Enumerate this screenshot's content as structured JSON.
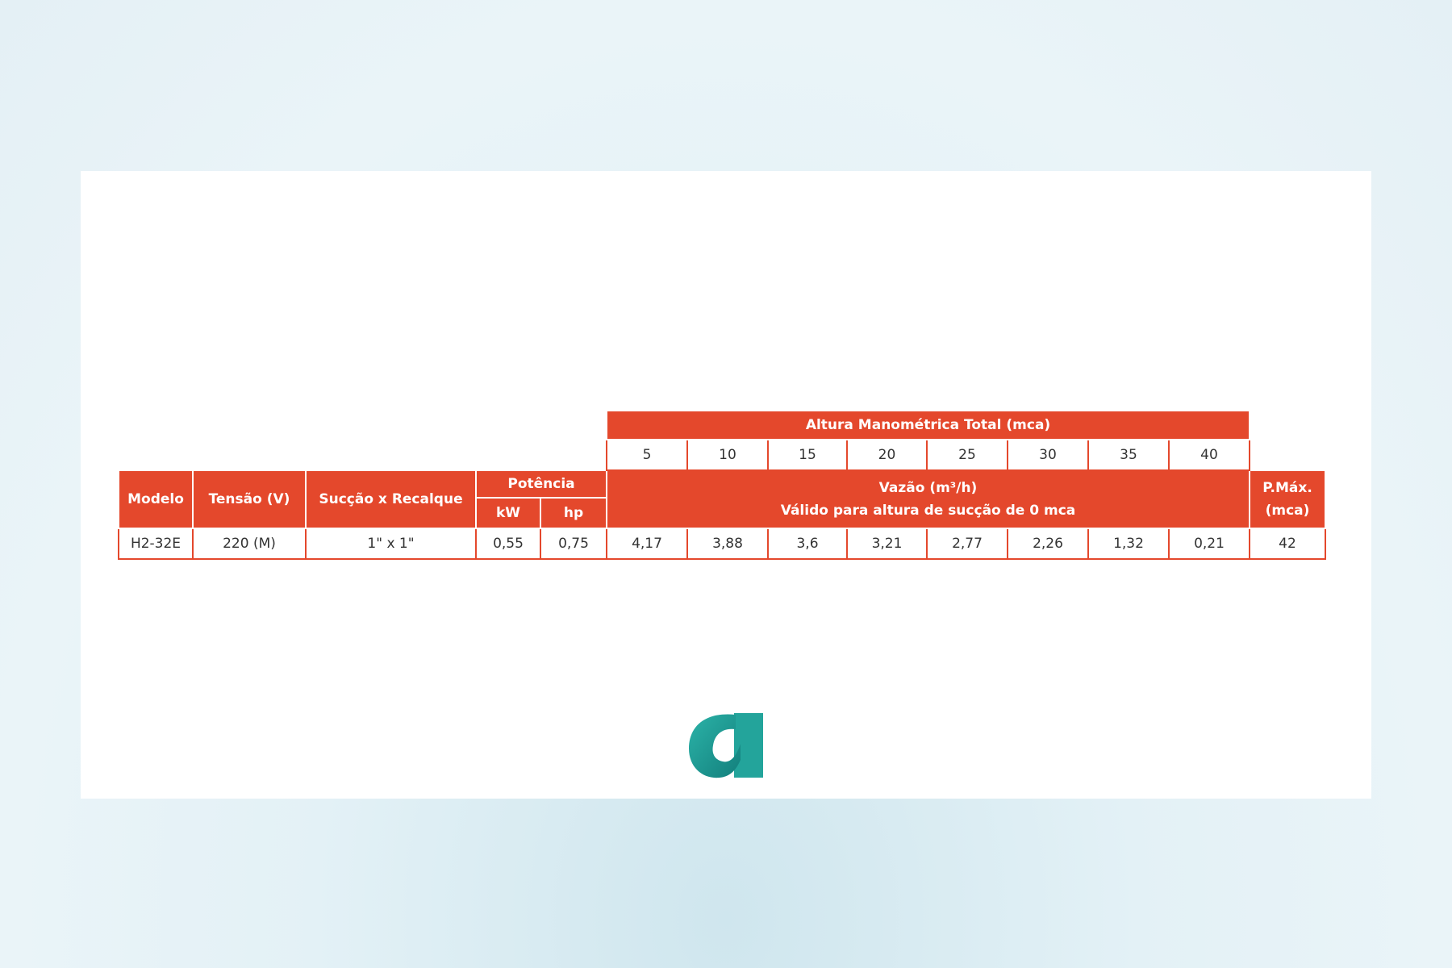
{
  "table": {
    "altura_header": "Altura Manométrica Total (mca)",
    "alturas": [
      "5",
      "10",
      "15",
      "20",
      "25",
      "30",
      "35",
      "40"
    ],
    "columns": {
      "modelo": "Modelo",
      "tensao": "Tensão (V)",
      "succao": "Sucção x Recalque",
      "potencia": "Potência",
      "kw": "kW",
      "hp": "hp",
      "vazao": "Vazão (m³/h)",
      "vazao_note": "Válido para altura de sucção de 0 mca",
      "pmax": "P.Máx.",
      "pmax_unit": "(mca)"
    },
    "row": {
      "modelo": "H2-32E",
      "tensao": "220 (M)",
      "succao": "1\" x 1\"",
      "kw": "0,55",
      "hp": "0,75",
      "vazoes": [
        "4,17",
        "3,88",
        "3,6",
        "3,21",
        "2,77",
        "2,26",
        "1,32",
        "0,21"
      ],
      "pmax": "42"
    }
  },
  "colors": {
    "header": "#e4482c",
    "logo": "#1f9e96"
  },
  "logo": {
    "icon": "a-letter-logo"
  }
}
